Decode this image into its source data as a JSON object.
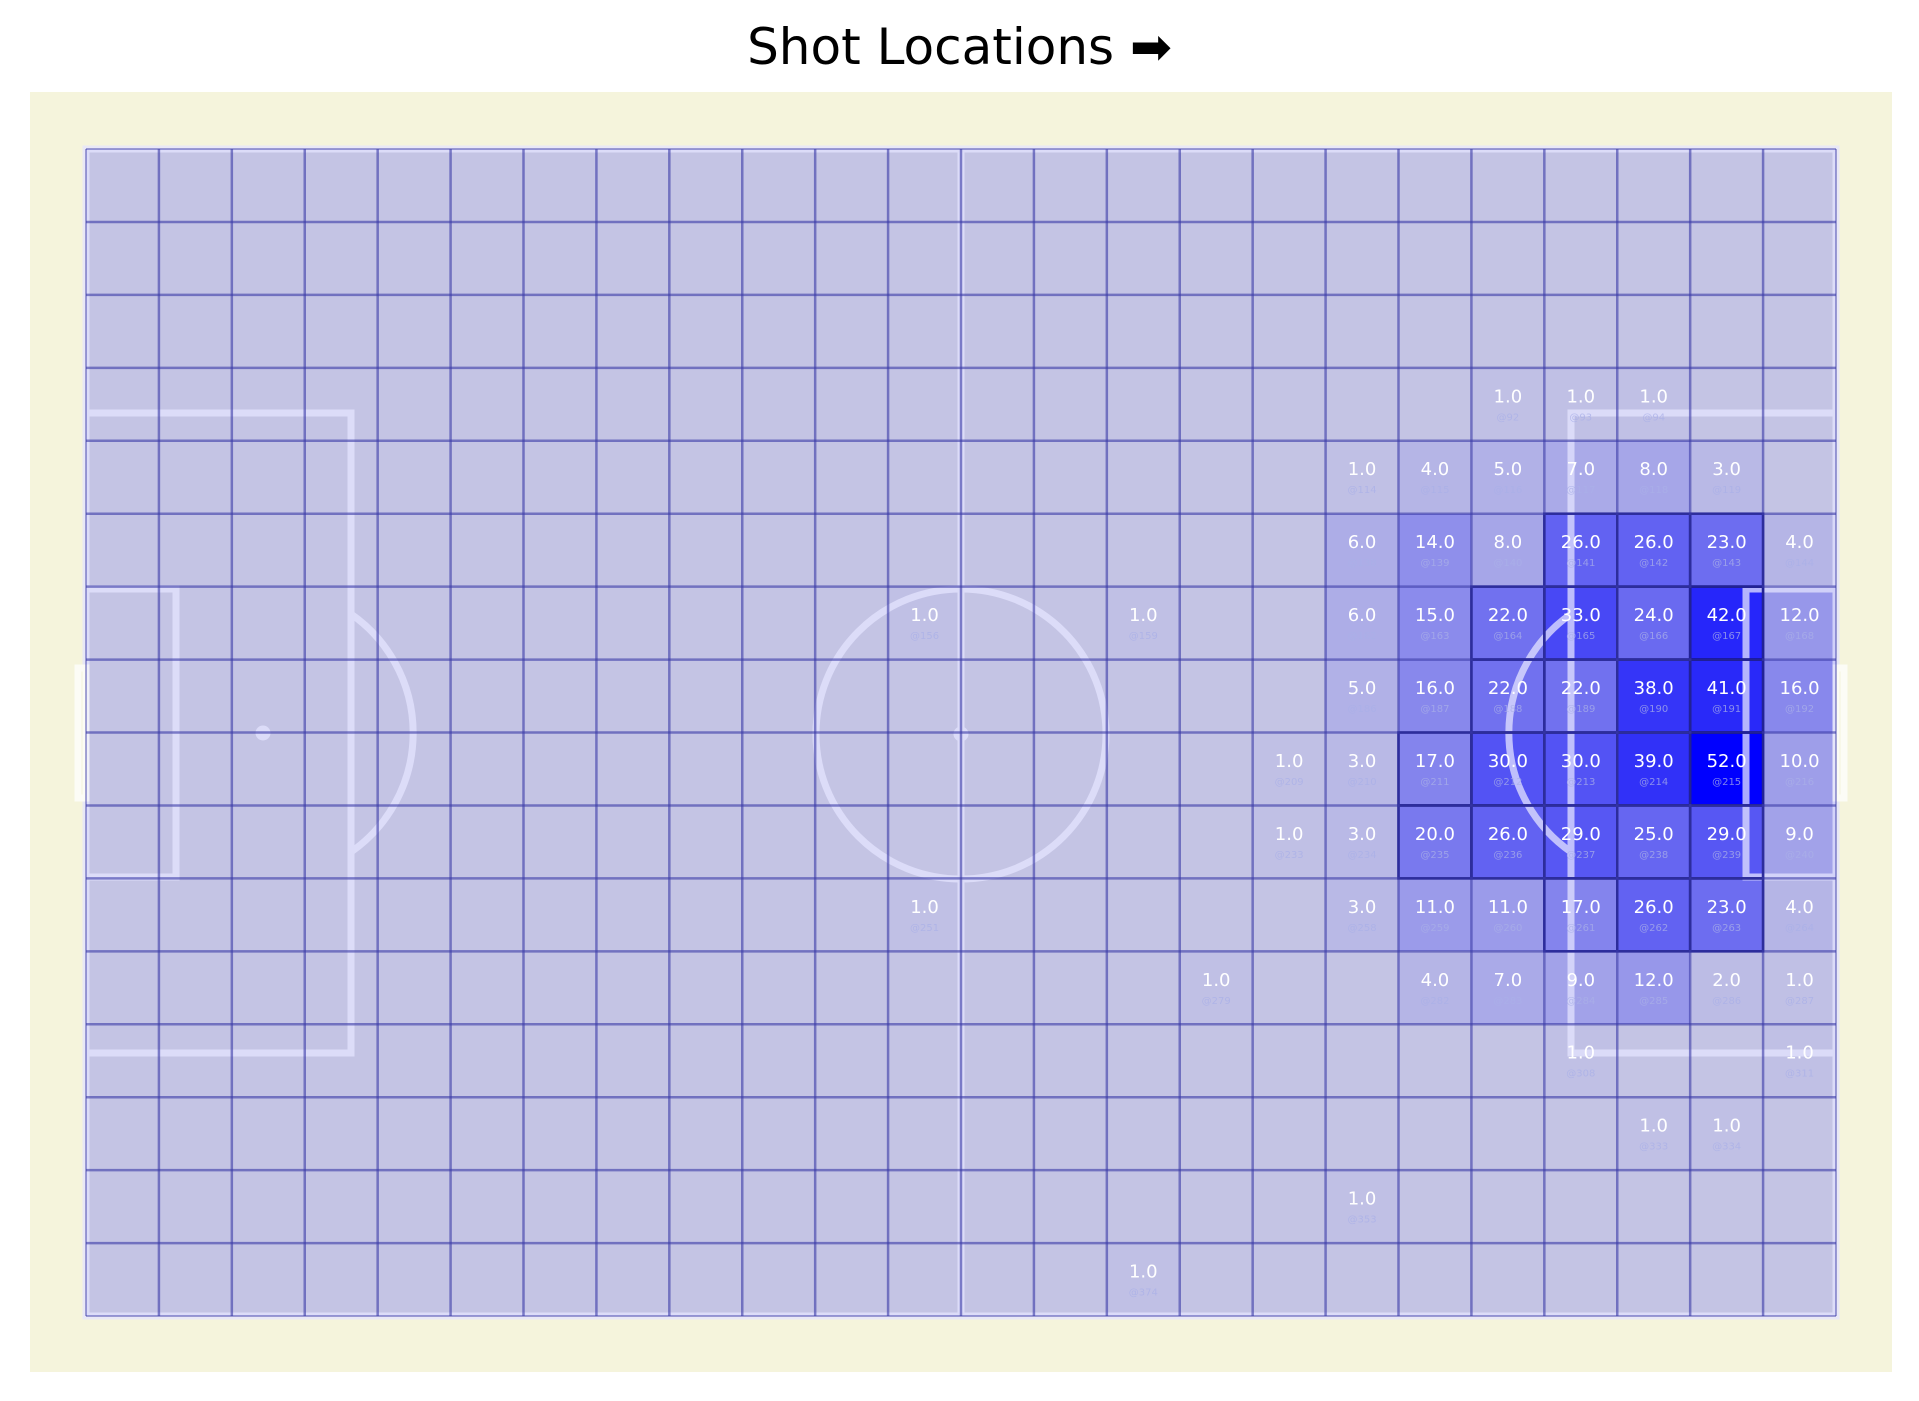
{
  "chart_data": {
    "type": "heatmap",
    "title": "Shot Locations",
    "title_icon": "right-arrow-icon",
    "grid": {
      "columns": 24,
      "rows": 16
    },
    "colors": {
      "surround": "#f5f4dc",
      "cell_base": "#c4c4e4",
      "cell_max": "#0000ff",
      "grid_line": "#3a3aa8",
      "pitch_line": "#e4e4ff",
      "label": "#ffffff"
    },
    "value_max": 52,
    "cells": [
      {
        "r": 3,
        "c": 19,
        "v": 1.0,
        "id": "@92"
      },
      {
        "r": 3,
        "c": 20,
        "v": 1.0,
        "id": "@93"
      },
      {
        "r": 3,
        "c": 21,
        "v": 1.0,
        "id": "@94"
      },
      {
        "r": 4,
        "c": 17,
        "v": 1.0,
        "id": "@114"
      },
      {
        "r": 4,
        "c": 18,
        "v": 4.0,
        "id": "@115"
      },
      {
        "r": 4,
        "c": 19,
        "v": 5.0,
        "id": "@116"
      },
      {
        "r": 4,
        "c": 20,
        "v": 7.0,
        "id": "@117"
      },
      {
        "r": 4,
        "c": 21,
        "v": 8.0,
        "id": "@118"
      },
      {
        "r": 4,
        "c": 22,
        "v": 3.0,
        "id": "@119"
      },
      {
        "r": 5,
        "c": 17,
        "v": 6.0,
        "id": "@138"
      },
      {
        "r": 5,
        "c": 18,
        "v": 14.0,
        "id": "@139"
      },
      {
        "r": 5,
        "c": 19,
        "v": 8.0,
        "id": "@140"
      },
      {
        "r": 5,
        "c": 20,
        "v": 26.0,
        "id": "@141"
      },
      {
        "r": 5,
        "c": 21,
        "v": 26.0,
        "id": "@142"
      },
      {
        "r": 5,
        "c": 22,
        "v": 23.0,
        "id": "@143"
      },
      {
        "r": 5,
        "c": 23,
        "v": 4.0,
        "id": "@144"
      },
      {
        "r": 6,
        "c": 11,
        "v": 1.0,
        "id": "@156"
      },
      {
        "r": 6,
        "c": 14,
        "v": 1.0,
        "id": "@159"
      },
      {
        "r": 6,
        "c": 17,
        "v": 6.0,
        "id": "@162"
      },
      {
        "r": 6,
        "c": 18,
        "v": 15.0,
        "id": "@163"
      },
      {
        "r": 6,
        "c": 19,
        "v": 22.0,
        "id": "@164"
      },
      {
        "r": 6,
        "c": 20,
        "v": 33.0,
        "id": "@165"
      },
      {
        "r": 6,
        "c": 21,
        "v": 24.0,
        "id": "@166"
      },
      {
        "r": 6,
        "c": 22,
        "v": 42.0,
        "id": "@167"
      },
      {
        "r": 6,
        "c": 23,
        "v": 12.0,
        "id": "@168"
      },
      {
        "r": 7,
        "c": 17,
        "v": 5.0,
        "id": "@186"
      },
      {
        "r": 7,
        "c": 18,
        "v": 16.0,
        "id": "@187"
      },
      {
        "r": 7,
        "c": 19,
        "v": 22.0,
        "id": "@188"
      },
      {
        "r": 7,
        "c": 20,
        "v": 22.0,
        "id": "@189"
      },
      {
        "r": 7,
        "c": 21,
        "v": 38.0,
        "id": "@190"
      },
      {
        "r": 7,
        "c": 22,
        "v": 41.0,
        "id": "@191"
      },
      {
        "r": 7,
        "c": 23,
        "v": 16.0,
        "id": "@192"
      },
      {
        "r": 8,
        "c": 16,
        "v": 1.0,
        "id": "@209"
      },
      {
        "r": 8,
        "c": 17,
        "v": 3.0,
        "id": "@210"
      },
      {
        "r": 8,
        "c": 18,
        "v": 17.0,
        "id": "@211"
      },
      {
        "r": 8,
        "c": 19,
        "v": 30.0,
        "id": "@212"
      },
      {
        "r": 8,
        "c": 20,
        "v": 30.0,
        "id": "@213"
      },
      {
        "r": 8,
        "c": 21,
        "v": 39.0,
        "id": "@214"
      },
      {
        "r": 8,
        "c": 22,
        "v": 52.0,
        "id": "@215"
      },
      {
        "r": 8,
        "c": 23,
        "v": 10.0,
        "id": "@216"
      },
      {
        "r": 9,
        "c": 16,
        "v": 1.0,
        "id": "@233"
      },
      {
        "r": 9,
        "c": 17,
        "v": 3.0,
        "id": "@234"
      },
      {
        "r": 9,
        "c": 18,
        "v": 20.0,
        "id": "@235"
      },
      {
        "r": 9,
        "c": 19,
        "v": 26.0,
        "id": "@236"
      },
      {
        "r": 9,
        "c": 20,
        "v": 29.0,
        "id": "@237"
      },
      {
        "r": 9,
        "c": 21,
        "v": 25.0,
        "id": "@238"
      },
      {
        "r": 9,
        "c": 22,
        "v": 29.0,
        "id": "@239"
      },
      {
        "r": 9,
        "c": 23,
        "v": 9.0,
        "id": "@240"
      },
      {
        "r": 10,
        "c": 11,
        "v": 1.0,
        "id": "@251"
      },
      {
        "r": 10,
        "c": 17,
        "v": 3.0,
        "id": "@258"
      },
      {
        "r": 10,
        "c": 18,
        "v": 11.0,
        "id": "@259"
      },
      {
        "r": 10,
        "c": 19,
        "v": 11.0,
        "id": "@260"
      },
      {
        "r": 10,
        "c": 20,
        "v": 17.0,
        "id": "@261"
      },
      {
        "r": 10,
        "c": 21,
        "v": 26.0,
        "id": "@262"
      },
      {
        "r": 10,
        "c": 22,
        "v": 23.0,
        "id": "@263"
      },
      {
        "r": 10,
        "c": 23,
        "v": 4.0,
        "id": "@264"
      },
      {
        "r": 11,
        "c": 15,
        "v": 1.0,
        "id": "@279"
      },
      {
        "r": 11,
        "c": 18,
        "v": 4.0,
        "id": "@282"
      },
      {
        "r": 11,
        "c": 19,
        "v": 7.0,
        "id": "@283"
      },
      {
        "r": 11,
        "c": 20,
        "v": 9.0,
        "id": "@284"
      },
      {
        "r": 11,
        "c": 21,
        "v": 12.0,
        "id": "@285"
      },
      {
        "r": 11,
        "c": 22,
        "v": 2.0,
        "id": "@286"
      },
      {
        "r": 11,
        "c": 23,
        "v": 1.0,
        "id": "@287"
      },
      {
        "r": 12,
        "c": 20,
        "v": 1.0,
        "id": "@308"
      },
      {
        "r": 12,
        "c": 23,
        "v": 1.0,
        "id": "@311"
      },
      {
        "r": 13,
        "c": 21,
        "v": 1.0,
        "id": "@333"
      },
      {
        "r": 13,
        "c": 22,
        "v": 1.0,
        "id": "@334"
      },
      {
        "r": 14,
        "c": 17,
        "v": 1.0,
        "id": "@353"
      },
      {
        "r": 15,
        "c": 14,
        "v": 1.0,
        "id": "@374"
      }
    ]
  }
}
